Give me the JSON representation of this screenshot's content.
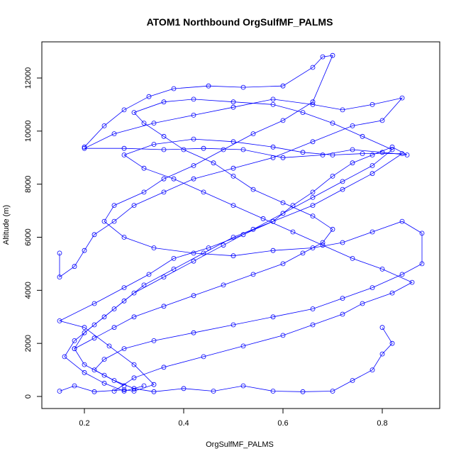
{
  "chart_data": {
    "type": "line",
    "title": "ATOM1 Northbound OrgSulfMF_PALMS",
    "xlabel": "OrgSulfMF_PALMS",
    "ylabel": "Altitude (m)",
    "xlim": [
      0.12,
      0.9
    ],
    "ylim": [
      -500,
      13000
    ],
    "x_ticks": [
      0.2,
      0.4,
      0.6,
      0.8
    ],
    "x_tick_labels": [
      "0.2",
      "0.4",
      "0.6",
      "0.8"
    ],
    "y_ticks": [
      0,
      2000,
      4000,
      6000,
      8000,
      10000,
      12000
    ],
    "y_tick_labels": [
      "0",
      "2000",
      "4000",
      "6000",
      "8000",
      "10000",
      "12000"
    ],
    "grid": false,
    "marker": "open-circle",
    "series_color": "#0000ff",
    "series": [
      {
        "points": [
          [
            0.15,
            200
          ],
          [
            0.18,
            400
          ],
          [
            0.22,
            180
          ],
          [
            0.28,
            250
          ],
          [
            0.3,
            200
          ],
          [
            0.34,
            450
          ],
          [
            0.3,
            1200
          ],
          [
            0.25,
            1900
          ],
          [
            0.2,
            2600
          ],
          [
            0.15,
            2850
          ],
          [
            0.22,
            3500
          ],
          [
            0.28,
            4100
          ],
          [
            0.33,
            4600
          ],
          [
            0.38,
            5200
          ],
          [
            0.45,
            5600
          ],
          [
            0.52,
            6100
          ],
          [
            0.58,
            6600
          ],
          [
            0.62,
            7200
          ],
          [
            0.66,
            7700
          ],
          [
            0.7,
            8300
          ],
          [
            0.74,
            8800
          ],
          [
            0.78,
            9100
          ],
          [
            0.82,
            9400
          ],
          [
            0.85,
            9100
          ],
          [
            0.8,
            9200
          ],
          [
            0.74,
            9300
          ],
          [
            0.68,
            9100
          ],
          [
            0.6,
            9000
          ],
          [
            0.52,
            9300
          ],
          [
            0.44,
            9350
          ],
          [
            0.36,
            9300
          ],
          [
            0.28,
            9350
          ],
          [
            0.2,
            9350
          ],
          [
            0.26,
            9900
          ],
          [
            0.34,
            10300
          ],
          [
            0.42,
            10600
          ],
          [
            0.5,
            10900
          ],
          [
            0.58,
            11200
          ],
          [
            0.66,
            11000
          ],
          [
            0.72,
            10800
          ],
          [
            0.78,
            11000
          ],
          [
            0.84,
            11250
          ],
          [
            0.8,
            10400
          ],
          [
            0.74,
            10200
          ],
          [
            0.66,
            9600
          ],
          [
            0.58,
            9000
          ],
          [
            0.5,
            8600
          ],
          [
            0.42,
            8200
          ],
          [
            0.36,
            7700
          ],
          [
            0.3,
            7200
          ],
          [
            0.26,
            6600
          ],
          [
            0.22,
            6100
          ],
          [
            0.2,
            5500
          ],
          [
            0.18,
            4900
          ],
          [
            0.15,
            4500
          ],
          [
            0.15,
            5400
          ]
        ]
      },
      {
        "points": [
          [
            0.2,
            9400
          ],
          [
            0.24,
            10200
          ],
          [
            0.28,
            10800
          ],
          [
            0.33,
            11300
          ],
          [
            0.38,
            11600
          ],
          [
            0.45,
            11700
          ],
          [
            0.52,
            11650
          ],
          [
            0.6,
            11700
          ],
          [
            0.66,
            12400
          ],
          [
            0.68,
            12800
          ],
          [
            0.7,
            12850
          ],
          [
            0.66,
            11100
          ],
          [
            0.6,
            10400
          ],
          [
            0.54,
            9900
          ],
          [
            0.48,
            9300
          ],
          [
            0.42,
            8700
          ],
          [
            0.36,
            8200
          ],
          [
            0.32,
            7700
          ],
          [
            0.26,
            7200
          ],
          [
            0.24,
            6600
          ],
          [
            0.28,
            6000
          ],
          [
            0.34,
            5600
          ],
          [
            0.42,
            5400
          ],
          [
            0.5,
            5300
          ],
          [
            0.58,
            5500
          ],
          [
            0.66,
            5600
          ],
          [
            0.72,
            5800
          ],
          [
            0.78,
            6200
          ],
          [
            0.84,
            6600
          ],
          [
            0.88,
            6150
          ],
          [
            0.88,
            5000
          ],
          [
            0.84,
            4600
          ],
          [
            0.78,
            4100
          ],
          [
            0.72,
            3700
          ],
          [
            0.66,
            3300
          ],
          [
            0.58,
            3000
          ],
          [
            0.5,
            2700
          ],
          [
            0.42,
            2400
          ],
          [
            0.34,
            2100
          ],
          [
            0.28,
            1800
          ],
          [
            0.24,
            1400
          ],
          [
            0.22,
            1000
          ],
          [
            0.26,
            600
          ],
          [
            0.3,
            300
          ],
          [
            0.34,
            180
          ],
          [
            0.4,
            300
          ],
          [
            0.46,
            200
          ],
          [
            0.52,
            400
          ],
          [
            0.58,
            200
          ],
          [
            0.64,
            180
          ],
          [
            0.7,
            200
          ],
          [
            0.74,
            600
          ],
          [
            0.78,
            1000
          ],
          [
            0.8,
            1600
          ],
          [
            0.82,
            2000
          ],
          [
            0.8,
            2600
          ]
        ]
      },
      {
        "points": [
          [
            0.18,
            1800
          ],
          [
            0.22,
            2200
          ],
          [
            0.26,
            2600
          ],
          [
            0.3,
            3000
          ],
          [
            0.36,
            3400
          ],
          [
            0.42,
            3800
          ],
          [
            0.48,
            4200
          ],
          [
            0.54,
            4600
          ],
          [
            0.6,
            5000
          ],
          [
            0.64,
            5400
          ],
          [
            0.68,
            5800
          ],
          [
            0.7,
            6300
          ],
          [
            0.66,
            6800
          ],
          [
            0.6,
            7300
          ],
          [
            0.54,
            7800
          ],
          [
            0.5,
            8300
          ],
          [
            0.46,
            8800
          ],
          [
            0.4,
            9300
          ],
          [
            0.36,
            9800
          ],
          [
            0.32,
            10300
          ],
          [
            0.3,
            10700
          ],
          [
            0.36,
            11100
          ],
          [
            0.42,
            11200
          ],
          [
            0.5,
            11100
          ],
          [
            0.58,
            11000
          ],
          [
            0.64,
            10700
          ],
          [
            0.7,
            10300
          ],
          [
            0.76,
            9800
          ],
          [
            0.82,
            9300
          ],
          [
            0.78,
            8700
          ],
          [
            0.72,
            8100
          ],
          [
            0.66,
            7500
          ],
          [
            0.6,
            6900
          ],
          [
            0.54,
            6300
          ],
          [
            0.48,
            5700
          ],
          [
            0.42,
            5100
          ],
          [
            0.36,
            4500
          ],
          [
            0.3,
            3900
          ],
          [
            0.26,
            3300
          ],
          [
            0.22,
            2700
          ],
          [
            0.18,
            2100
          ],
          [
            0.16,
            1500
          ],
          [
            0.2,
            900
          ],
          [
            0.24,
            500
          ],
          [
            0.28,
            200
          ],
          [
            0.32,
            400
          ]
        ]
      },
      {
        "points": [
          [
            0.26,
            200
          ],
          [
            0.3,
            700
          ],
          [
            0.36,
            1100
          ],
          [
            0.44,
            1500
          ],
          [
            0.52,
            1900
          ],
          [
            0.6,
            2300
          ],
          [
            0.66,
            2700
          ],
          [
            0.72,
            3100
          ],
          [
            0.76,
            3500
          ],
          [
            0.82,
            3900
          ],
          [
            0.86,
            4300
          ],
          [
            0.8,
            4800
          ],
          [
            0.74,
            5200
          ],
          [
            0.68,
            5700
          ],
          [
            0.62,
            6200
          ],
          [
            0.56,
            6700
          ],
          [
            0.5,
            7200
          ],
          [
            0.44,
            7700
          ],
          [
            0.38,
            8200
          ],
          [
            0.32,
            8600
          ],
          [
            0.28,
            9100
          ],
          [
            0.34,
            9500
          ],
          [
            0.42,
            9700
          ],
          [
            0.5,
            9600
          ],
          [
            0.58,
            9400
          ],
          [
            0.64,
            9200
          ],
          [
            0.7,
            9100
          ],
          [
            0.76,
            9150
          ],
          [
            0.84,
            9150
          ],
          [
            0.78,
            8400
          ],
          [
            0.72,
            7800
          ],
          [
            0.66,
            7200
          ],
          [
            0.58,
            6600
          ],
          [
            0.5,
            6000
          ],
          [
            0.44,
            5400
          ],
          [
            0.38,
            4800
          ],
          [
            0.32,
            4200
          ],
          [
            0.28,
            3600
          ],
          [
            0.24,
            3000
          ],
          [
            0.2,
            2400
          ],
          [
            0.18,
            1800
          ],
          [
            0.2,
            1200
          ],
          [
            0.24,
            800
          ],
          [
            0.28,
            400
          ]
        ]
      }
    ]
  }
}
